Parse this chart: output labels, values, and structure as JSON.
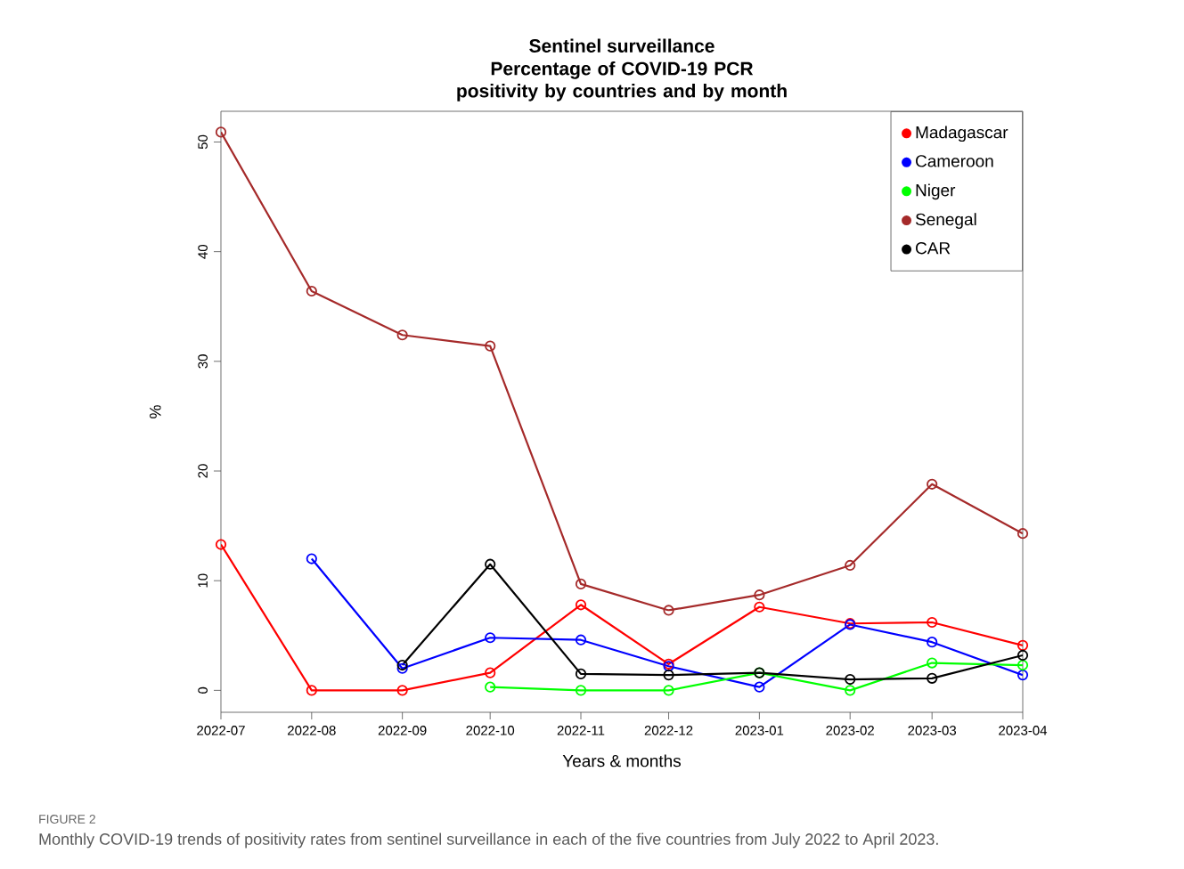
{
  "chart_data": {
    "type": "line",
    "title": "Sentinel surveillance",
    "subtitle": "Percentage of COVID-19 PCR positivity by countries and by month",
    "xlabel": "Years & months",
    "ylabel": "%",
    "x": [
      "2022-07",
      "2022-08",
      "2022-09",
      "2022-10",
      "2022-11",
      "2022-12",
      "2023-01",
      "2023-02",
      "2023-03",
      "2023-04"
    ],
    "xlim": [
      "2022-07",
      "2023-04"
    ],
    "xticks": [
      "2022-07",
      "2022-08",
      "2022-09",
      "2022-10",
      "2022-11",
      "2022-12",
      "2023-01",
      "2023-02",
      "2023-03",
      "2023-04"
    ],
    "ylim": [
      -2,
      52.8
    ],
    "yticks": [
      0,
      10,
      20,
      30,
      40,
      50
    ],
    "series": [
      {
        "name": "Madagascar",
        "color": "#ff0000",
        "values": [
          13.3,
          0,
          0,
          1.6,
          7.8,
          2.4,
          7.6,
          6.1,
          6.2,
          4.1
        ]
      },
      {
        "name": "Cameroon",
        "color": "#0000ff",
        "values": [
          null,
          12.0,
          2.0,
          4.8,
          4.6,
          2.2,
          0.3,
          6.0,
          4.4,
          1.4
        ]
      },
      {
        "name": "Niger",
        "color": "#00ff00",
        "values": [
          null,
          null,
          null,
          0.3,
          0,
          0,
          1.6,
          0,
          2.5,
          2.3
        ]
      },
      {
        "name": "Senegal",
        "color": "#a52a2a",
        "values": [
          50.9,
          36.4,
          32.4,
          31.4,
          9.7,
          7.3,
          8.7,
          11.4,
          18.8,
          14.3
        ]
      },
      {
        "name": "CAR",
        "color": "#000000",
        "values": [
          null,
          null,
          2.3,
          11.5,
          1.5,
          1.4,
          1.6,
          1.0,
          1.1,
          3.2
        ]
      }
    ],
    "marker": "circle",
    "line_style": "solid",
    "legend": "top right",
    "grid": false,
    "annotations": [
      "FIGURE 2",
      "Monthly COVID-19 trends of positivity rates from sentinel surveillance in each of the five countries from July 2022 to April 2023."
    ]
  }
}
